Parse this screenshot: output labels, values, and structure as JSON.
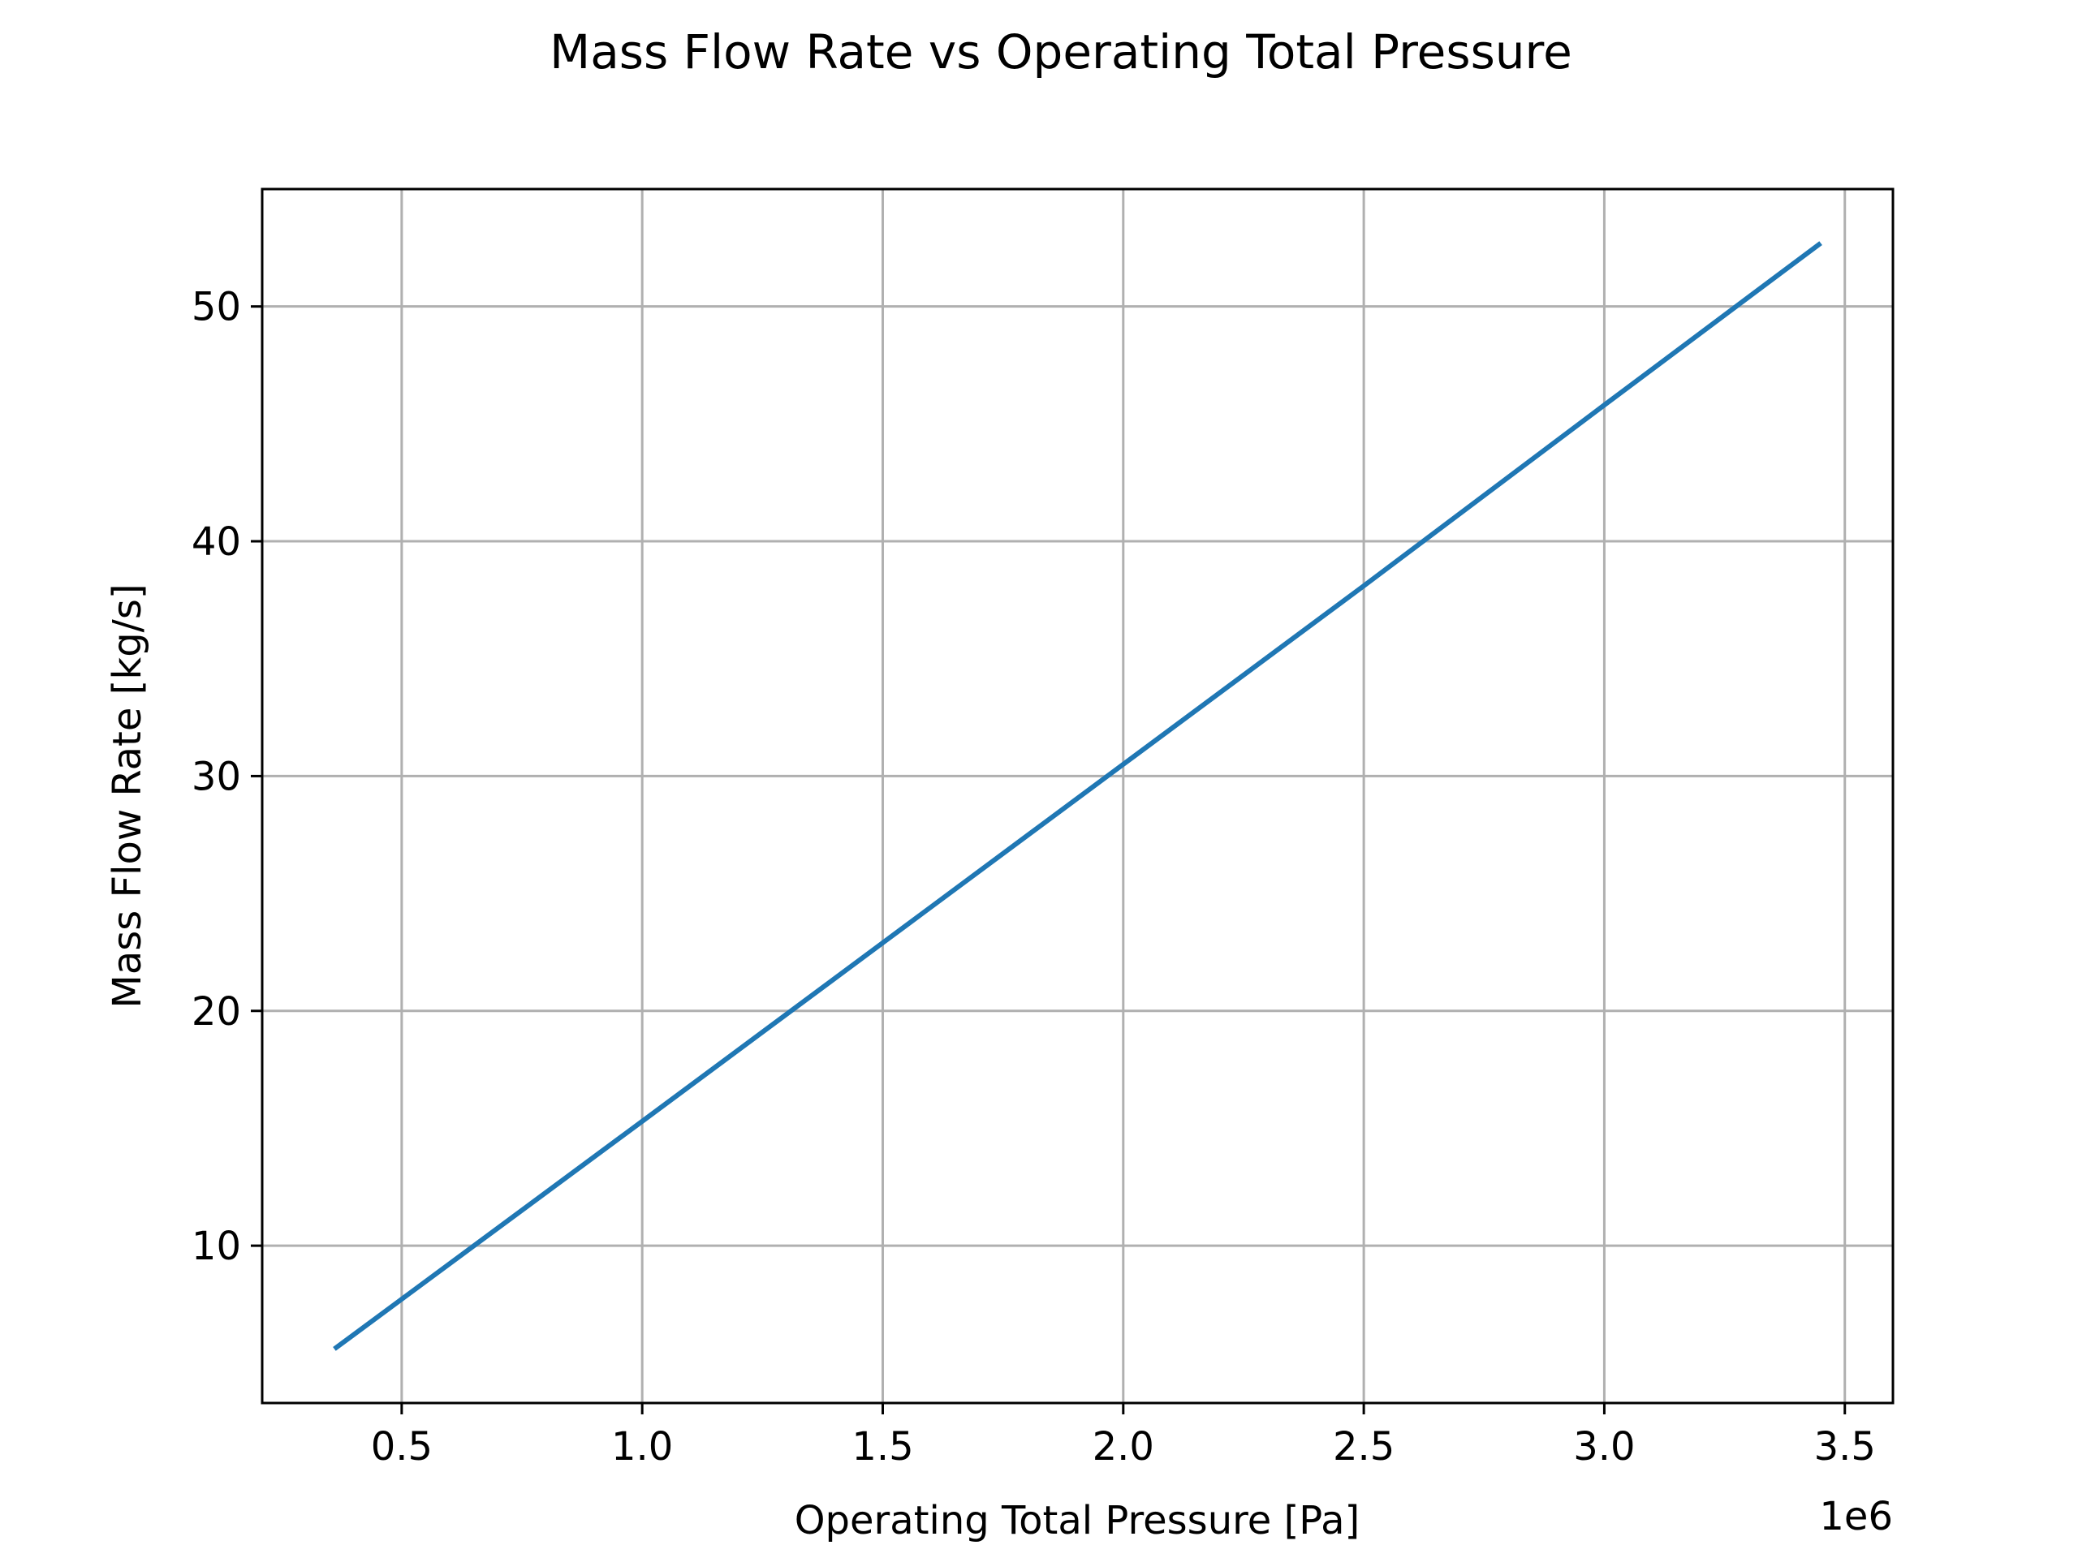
{
  "chart_data": {
    "type": "line",
    "title": "Mass Flow Rate vs Operating Total Pressure",
    "xlabel": "Operating Total Pressure [Pa]",
    "ylabel": "Mass Flow Rate [kg/s]",
    "x_offset_label": "1e6",
    "xlim": [
      0.21,
      3.6
    ],
    "ylim": [
      3.3,
      55
    ],
    "x_ticks": [
      0.5,
      1.0,
      1.5,
      2.0,
      2.5,
      3.0,
      3.5
    ],
    "x_tick_labels": [
      "0.5",
      "1.0",
      "1.5",
      "2.0",
      "2.5",
      "3.0",
      "3.5"
    ],
    "y_ticks": [
      10,
      20,
      30,
      40,
      50
    ],
    "y_tick_labels": [
      "10",
      "20",
      "30",
      "40",
      "50"
    ],
    "grid": true,
    "series": [
      {
        "color": "#1f77b4",
        "x": [
          0.36,
          1.0,
          1.5,
          2.0,
          2.5,
          3.0,
          3.45
        ],
        "y": [
          5.6,
          15.3,
          22.9,
          30.5,
          38.1,
          45.8,
          52.7
        ]
      }
    ]
  }
}
